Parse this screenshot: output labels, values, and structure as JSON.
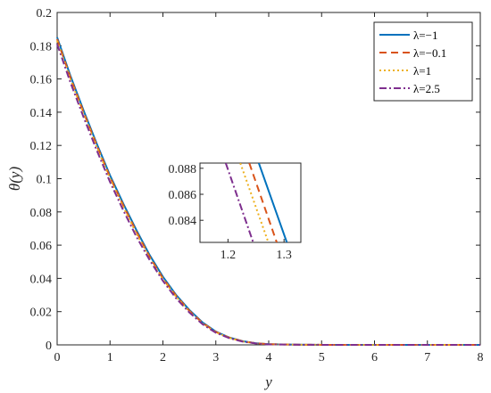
{
  "chart_data": [
    {
      "type": "line",
      "xlabel": "y",
      "ylabel": "θ(y)",
      "xlim": [
        0,
        8
      ],
      "ylim": [
        0,
        0.2
      ],
      "xticks": [
        "0",
        "1",
        "2",
        "3",
        "4",
        "5",
        "6",
        "7",
        "8"
      ],
      "yticks": [
        "0",
        "0.02",
        "0.04",
        "0.06",
        "0.08",
        "0.1",
        "0.12",
        "0.14",
        "0.16",
        "0.18",
        "0.2"
      ],
      "grid": false,
      "legend_position": "top-right",
      "series": [
        {
          "name": "λ=−1",
          "color": "#0072BD",
          "dash": "solid",
          "x": [
            0,
            0.25,
            0.5,
            0.75,
            1,
            1.25,
            1.5,
            1.75,
            2,
            2.25,
            2.5,
            2.75,
            3,
            3.25,
            3.5,
            3.75,
            4,
            4.5,
            5,
            5.5,
            6,
            6.5,
            7,
            7.5,
            8
          ],
          "y": [
            0.185,
            0.162,
            0.141,
            0.121,
            0.102,
            0.085,
            0.069,
            0.054,
            0.041,
            0.03,
            0.021,
            0.0135,
            0.008,
            0.0045,
            0.0023,
            0.001,
            0.0004,
            0.0001,
            3e-05,
            1e-05,
            0,
            0,
            0,
            0,
            0
          ]
        },
        {
          "name": "λ=−0.1",
          "color": "#D95319",
          "dash": "dashed",
          "x": [
            0,
            0.25,
            0.5,
            0.75,
            1,
            1.25,
            1.5,
            1.75,
            2,
            2.25,
            2.5,
            2.75,
            3,
            3.25,
            3.5,
            3.75,
            4,
            4.5,
            5,
            5.5,
            6,
            6.5,
            7,
            7.5,
            8
          ],
          "y": [
            0.184,
            0.161,
            0.14,
            0.12,
            0.101,
            0.084,
            0.068,
            0.053,
            0.04,
            0.0295,
            0.0205,
            0.0132,
            0.0078,
            0.0044,
            0.0022,
            0.001,
            0.0004,
            0.0001,
            3e-05,
            1e-05,
            0,
            0,
            0,
            0,
            0
          ]
        },
        {
          "name": "λ=1",
          "color": "#EDB120",
          "dash": "dotted",
          "x": [
            0,
            0.25,
            0.5,
            0.75,
            1,
            1.25,
            1.5,
            1.75,
            2,
            2.25,
            2.5,
            2.75,
            3,
            3.25,
            3.5,
            3.75,
            4,
            4.5,
            5,
            5.5,
            6,
            6.5,
            7,
            7.5,
            8
          ],
          "y": [
            0.183,
            0.16,
            0.139,
            0.119,
            0.1,
            0.083,
            0.067,
            0.052,
            0.0395,
            0.029,
            0.02,
            0.0128,
            0.0076,
            0.0043,
            0.0021,
            0.0009,
            0.0004,
            0.0001,
            3e-05,
            1e-05,
            0,
            0,
            0,
            0,
            0
          ]
        },
        {
          "name": "λ=2.5",
          "color": "#7E2F8E",
          "dash": "dashdot",
          "x": [
            0,
            0.25,
            0.5,
            0.75,
            1,
            1.25,
            1.5,
            1.75,
            2,
            2.25,
            2.5,
            2.75,
            3,
            3.25,
            3.5,
            3.75,
            4,
            4.5,
            5,
            5.5,
            6,
            6.5,
            7,
            7.5,
            8
          ],
          "y": [
            0.181,
            0.158,
            0.137,
            0.117,
            0.098,
            0.081,
            0.065,
            0.051,
            0.0385,
            0.028,
            0.0195,
            0.0124,
            0.0073,
            0.0041,
            0.002,
            0.0009,
            0.0003,
            0.0001,
            3e-05,
            1e-05,
            0,
            0,
            0,
            0,
            0
          ]
        }
      ]
    },
    {
      "type": "line",
      "role": "inset",
      "xlim": [
        1.15,
        1.33
      ],
      "ylim": [
        0.0823,
        0.0884
      ],
      "xticks": [
        "1.2",
        "1.3"
      ],
      "yticks": [
        "0.084",
        "0.086",
        "0.088"
      ],
      "series": [
        {
          "name": "λ=−1",
          "color": "#0072BD",
          "dash": "solid",
          "x": [
            1.255,
            1.305
          ],
          "y": [
            0.0884,
            0.0823
          ]
        },
        {
          "name": "λ=−0.1",
          "color": "#D95319",
          "dash": "dashed",
          "x": [
            1.238,
            1.287
          ],
          "y": [
            0.0884,
            0.0823
          ]
        },
        {
          "name": "λ=1",
          "color": "#EDB120",
          "dash": "dotted",
          "x": [
            1.222,
            1.272
          ],
          "y": [
            0.0884,
            0.0823
          ]
        },
        {
          "name": "λ=2.5",
          "color": "#7E2F8E",
          "dash": "dashdot",
          "x": [
            1.196,
            1.245
          ],
          "y": [
            0.0884,
            0.0823
          ]
        }
      ]
    }
  ]
}
